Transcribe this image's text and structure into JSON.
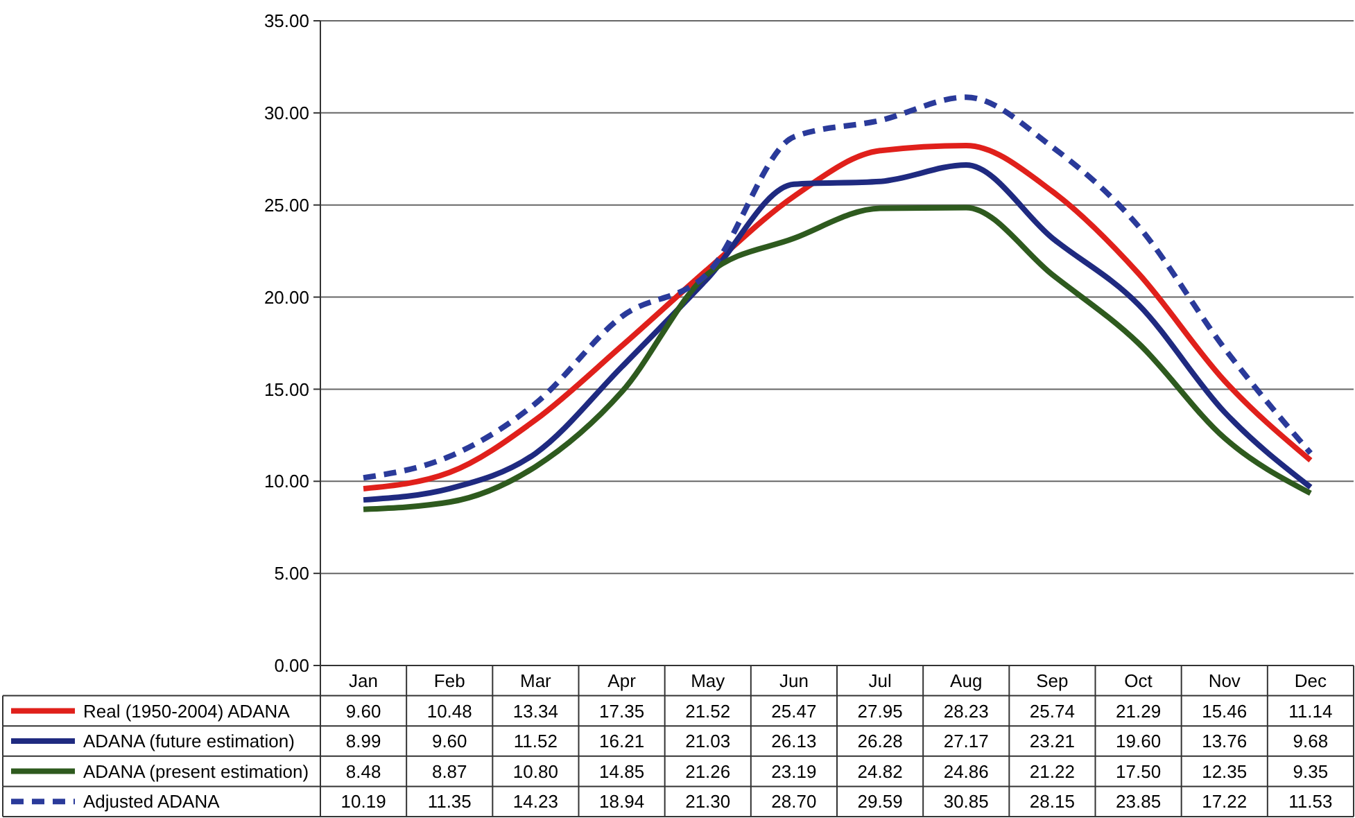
{
  "chart_data": {
    "type": "line",
    "categories": [
      "Jan",
      "Feb",
      "Mar",
      "Apr",
      "May",
      "Jun",
      "Jul",
      "Aug",
      "Sep",
      "Oct",
      "Nov",
      "Dec"
    ],
    "series": [
      {
        "name": "Real (1950-2004) ADANA",
        "color": "#e0201b",
        "values": [
          9.6,
          10.48,
          13.34,
          17.35,
          21.52,
          25.47,
          27.95,
          28.23,
          25.74,
          21.29,
          15.46,
          11.14
        ],
        "value_labels": [
          "9.60",
          "10.48",
          "13.34",
          "17.35",
          "21.52",
          "25.47",
          "27.95",
          "28.23",
          "25.74",
          "21.29",
          "15.46",
          "11.14"
        ]
      },
      {
        "name": "ADANA (future estimation)",
        "color": "#1f2a80",
        "values": [
          8.99,
          9.6,
          11.52,
          16.21,
          21.03,
          26.13,
          26.28,
          27.17,
          23.21,
          19.6,
          13.76,
          9.68
        ],
        "value_labels": [
          "8.99",
          "9.60",
          "11.52",
          "16.21",
          "21.03",
          "26.13",
          "26.28",
          "27.17",
          "23.21",
          "19.60",
          "13.76",
          "9.68"
        ]
      },
      {
        "name": "ADANA (present estimation)",
        "color": "#2e5a1e",
        "values": [
          8.48,
          8.87,
          10.8,
          14.85,
          21.26,
          23.19,
          24.82,
          24.86,
          21.22,
          17.5,
          12.35,
          9.35
        ],
        "value_labels": [
          "8.48",
          "8.87",
          "10.80",
          "14.85",
          "21.26",
          "23.19",
          "24.82",
          "24.86",
          "21.22",
          "17.50",
          "12.35",
          "9.35"
        ]
      },
      {
        "name": "Adjusted ADANA",
        "color": "#2a3a9a",
        "line_style": "dashed",
        "values": [
          10.19,
          11.35,
          14.23,
          18.94,
          21.3,
          28.7,
          29.59,
          30.85,
          28.15,
          23.85,
          17.22,
          11.53
        ],
        "value_labels": [
          "10.19",
          "11.35",
          "14.23",
          "18.94",
          "21.30",
          "28.70",
          "29.59",
          "30.85",
          "28.15",
          "23.85",
          "17.22",
          "11.53"
        ]
      }
    ],
    "ylim": [
      0,
      35
    ],
    "yticks": [
      {
        "value": 0,
        "label": "0.00"
      },
      {
        "value": 5,
        "label": "5.00"
      },
      {
        "value": 10,
        "label": "10.00"
      },
      {
        "value": 15,
        "label": "15.00"
      },
      {
        "value": 20,
        "label": "20.00"
      },
      {
        "value": 25,
        "label": "25.00"
      },
      {
        "value": 30,
        "label": "30.00"
      },
      {
        "value": 35,
        "label": "35.00"
      }
    ],
    "grid": "y",
    "legend": "bottom",
    "marker": "none",
    "line_style": "solid"
  }
}
